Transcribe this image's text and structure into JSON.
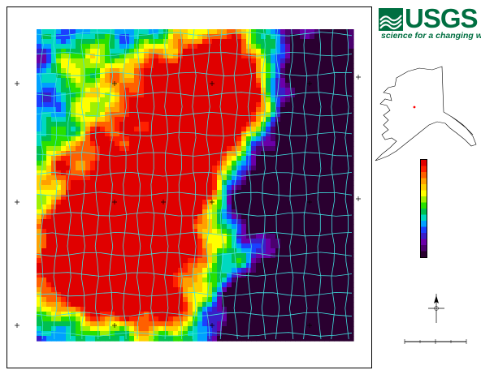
{
  "branding": {
    "agency": "USGS",
    "tagline": "science for a changing world",
    "color": "#006f41"
  },
  "map": {
    "colormap": [
      "#2a0030",
      "#4b006e",
      "#6a00a8",
      "#3a1ec8",
      "#1a40ff",
      "#00a0ff",
      "#00d8c0",
      "#00c050",
      "#28e000",
      "#a0f000",
      "#ffff00",
      "#ffd000",
      "#ffa000",
      "#ff6000",
      "#ff2000",
      "#e00000"
    ],
    "flightline_color": "#40e0e0",
    "background": "#000000"
  },
  "legend": {
    "labels": [
      "",
      "",
      "",
      "",
      "",
      "",
      "",
      "",
      "",
      "",
      "",
      "",
      "",
      "",
      "",
      ""
    ],
    "units": ""
  },
  "scale_bar": {
    "text": "",
    "subtext": "",
    "subtext2": ""
  },
  "inset": {
    "region": "Alaska",
    "marker_color": "#ff0000"
  }
}
